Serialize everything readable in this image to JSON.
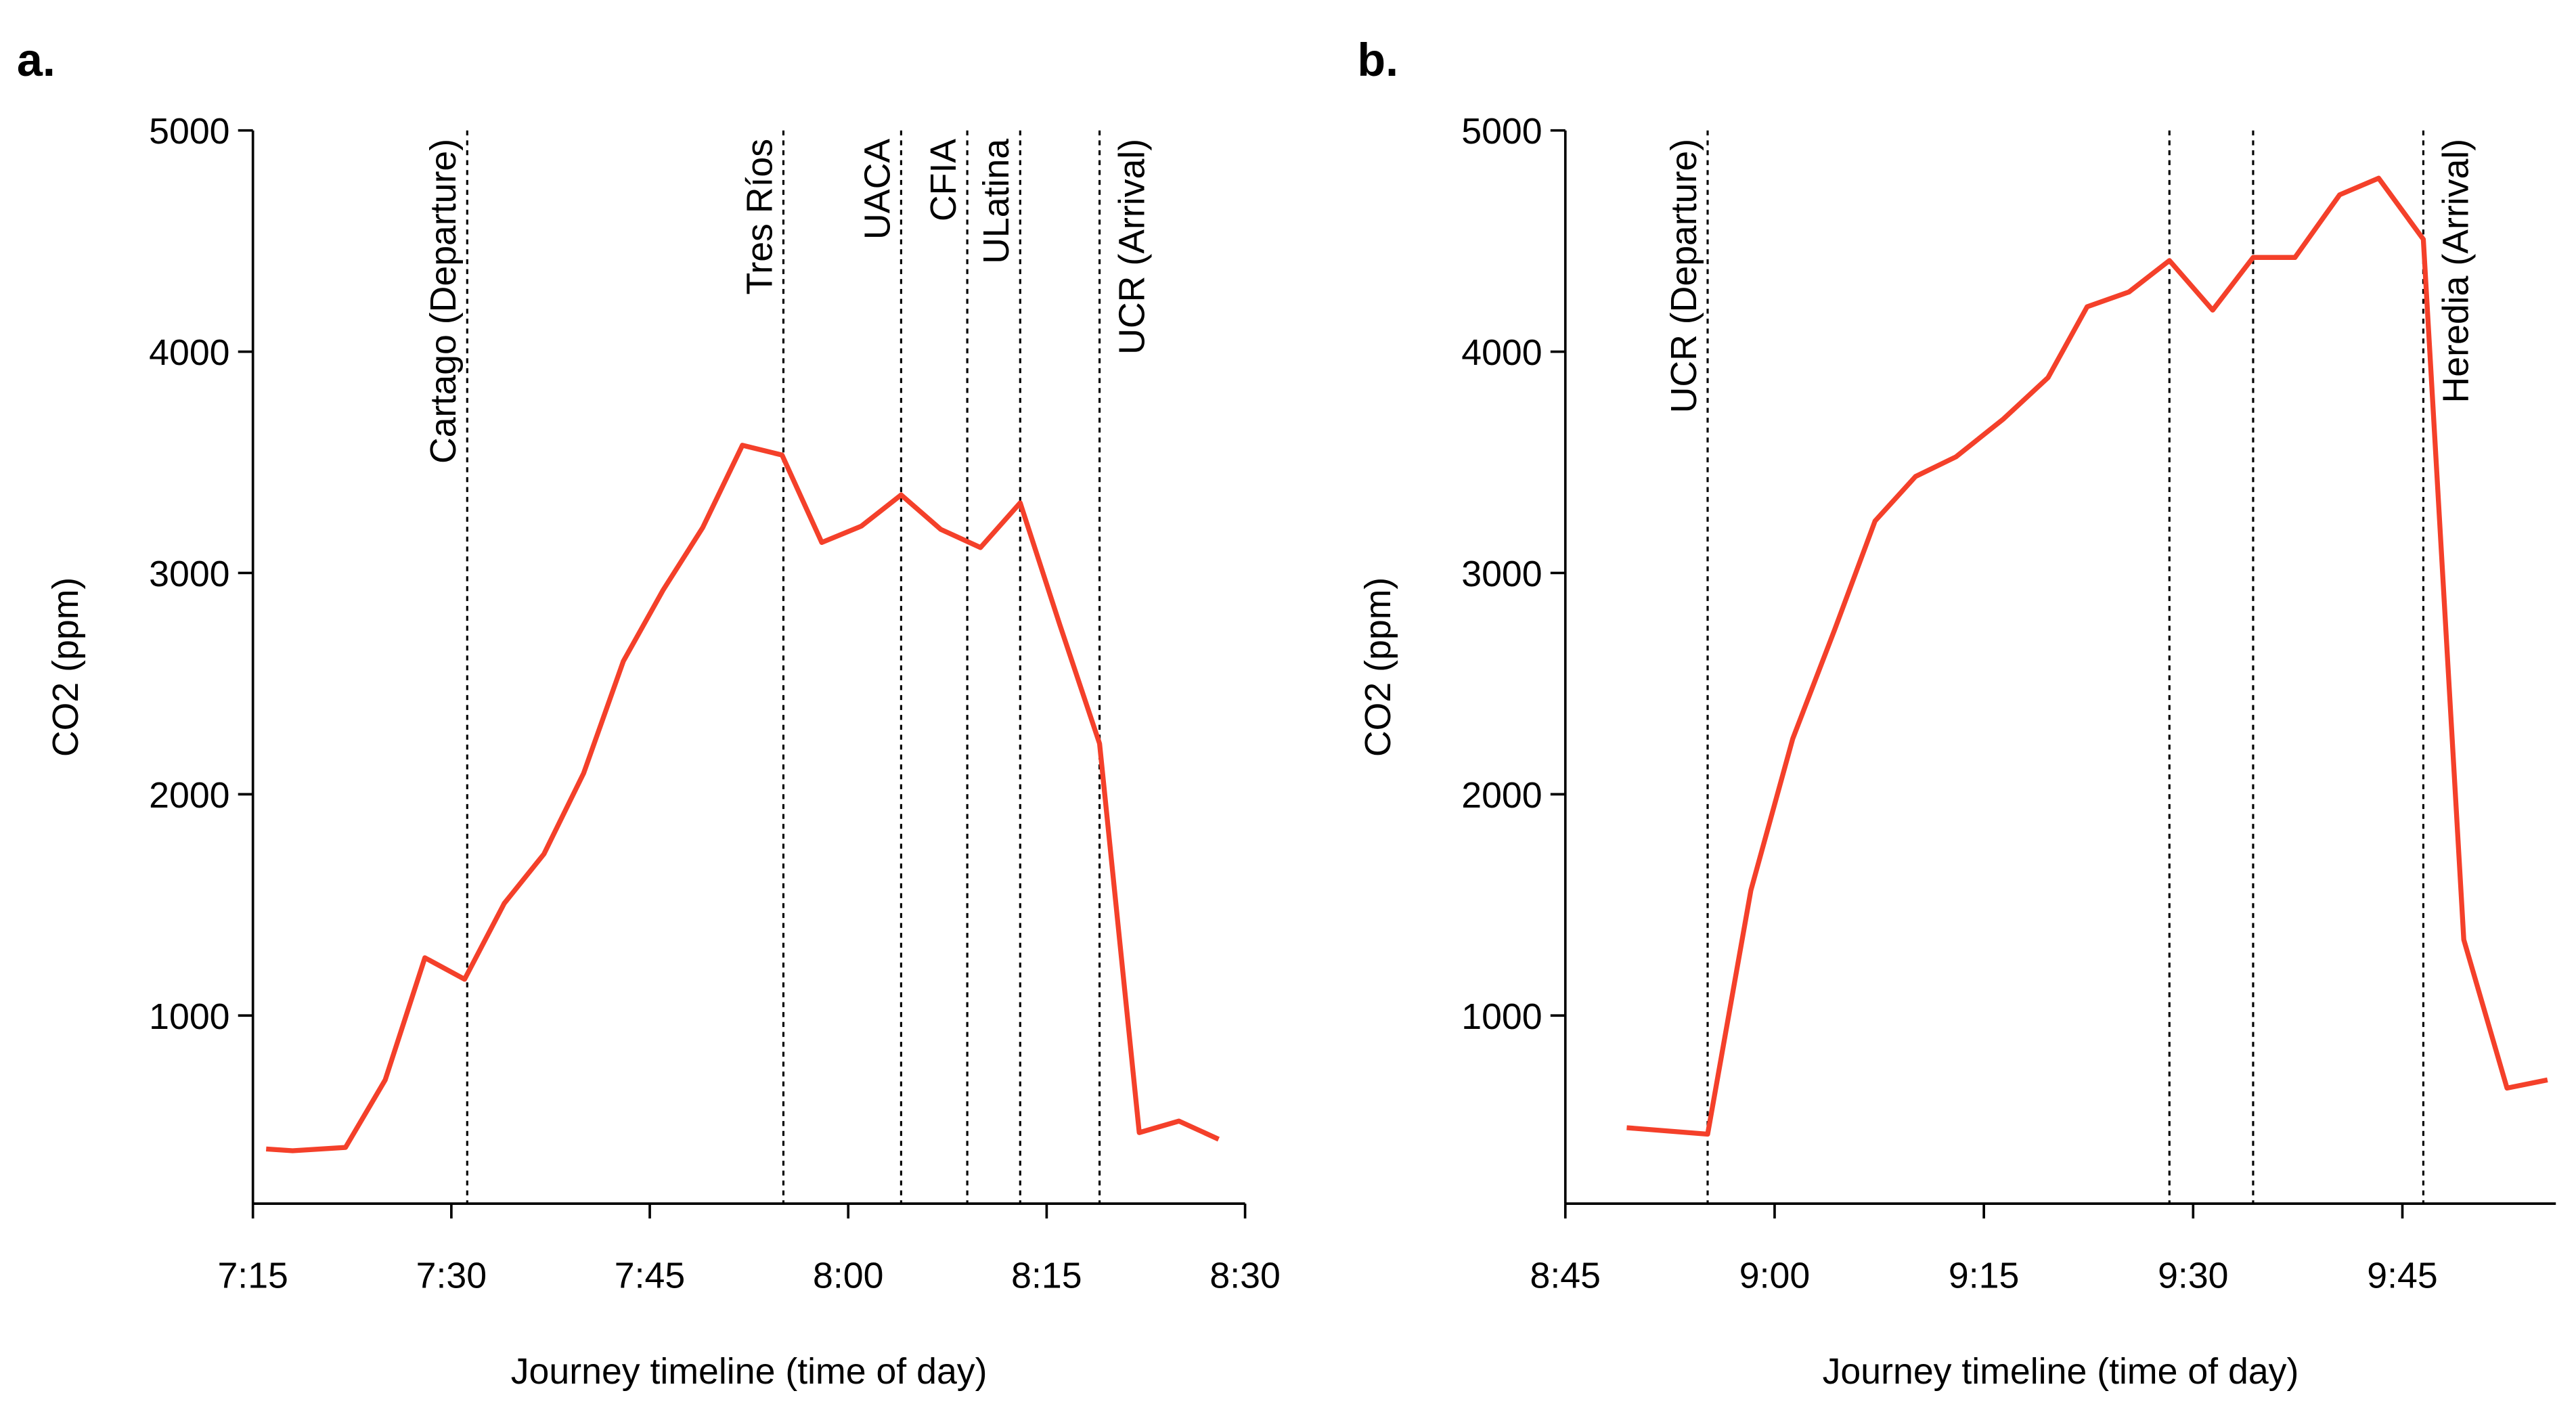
{
  "chart_data": [
    {
      "type": "line",
      "panel": "a.",
      "xlabel": "Journey timeline (time of day)",
      "ylabel": "CO2 (ppm)",
      "x": [
        436,
        438,
        442,
        445,
        448,
        451,
        454,
        457,
        460,
        463,
        466,
        469,
        472,
        475,
        478,
        481,
        484,
        487,
        490,
        493,
        496,
        499,
        502,
        505,
        508
      ],
      "series": [
        {
          "name": "CO2",
          "color": "#f4402a",
          "values": [
            397,
            389,
            404,
            709,
            1261,
            1164,
            1507,
            1730,
            2095,
            2601,
            2922,
            3205,
            3577,
            3533,
            3138,
            3212,
            3353,
            3197,
            3115,
            3317,
            2765,
            2229,
            471,
            523,
            441
          ]
        }
      ],
      "xlim": [
        435,
        510
      ],
      "xticks": [
        {
          "value": 435,
          "label": "7:15"
        },
        {
          "value": 450,
          "label": "7:30"
        },
        {
          "value": 465,
          "label": "7:45"
        },
        {
          "value": 480,
          "label": "8:00"
        },
        {
          "value": 495,
          "label": "8:15"
        },
        {
          "value": 510,
          "label": "8:30"
        }
      ],
      "ylim": [
        150,
        5000
      ],
      "yticks": [
        1000,
        2000,
        3000,
        4000,
        5000
      ],
      "grid": false,
      "annotations": [
        {
          "x": 451.2,
          "label": "Cartago (Departure)"
        },
        {
          "x": 475.1,
          "label": "Tres Ríos"
        },
        {
          "x": 484,
          "label": "UACA"
        },
        {
          "x": 489,
          "label": "CFIA"
        },
        {
          "x": 493,
          "label": "ULatina"
        },
        {
          "x": 499,
          "label": "UCR (Arrival)"
        }
      ]
    },
    {
      "type": "line",
      "panel": "b.",
      "xlabel": "Journey timeline (time of day)",
      "ylabel": "CO2 (ppm)",
      "x": [
        529.4,
        535.2,
        538.3,
        541.3,
        544.3,
        547.2,
        550.1,
        553,
        556.4,
        559.6,
        562.4,
        565.4,
        568.3,
        571.4,
        574.3,
        577.3,
        580.5,
        583.3,
        586.5,
        589.4,
        592.5,
        595.4
      ],
      "series": [
        {
          "name": "CO2",
          "color": "#f4402a",
          "values": [
            493,
            464,
            1566,
            2251,
            2743,
            3235,
            3436,
            3525,
            3696,
            3883,
            4203,
            4270,
            4412,
            4188,
            4426,
            4426,
            4709,
            4784,
            4508,
            1343,
            672,
            709
          ]
        }
      ],
      "xlim": [
        525,
        596
      ],
      "xticks": [
        {
          "value": 525,
          "label": "8:45"
        },
        {
          "value": 540,
          "label": "9:00"
        },
        {
          "value": 555,
          "label": "9:15"
        },
        {
          "value": 570,
          "label": "9:30"
        },
        {
          "value": 585,
          "label": "9:45"
        }
      ],
      "ylim": [
        150,
        5000
      ],
      "yticks": [
        1000,
        2000,
        3000,
        4000,
        5000
      ],
      "grid": false,
      "annotations": [
        {
          "x": 535.2,
          "label": "UCR (Departure)"
        },
        {
          "x": 568.3
        },
        {
          "x": 574.3
        },
        {
          "x": 586.5,
          "label": "Heredia (Arrival)"
        }
      ]
    }
  ]
}
